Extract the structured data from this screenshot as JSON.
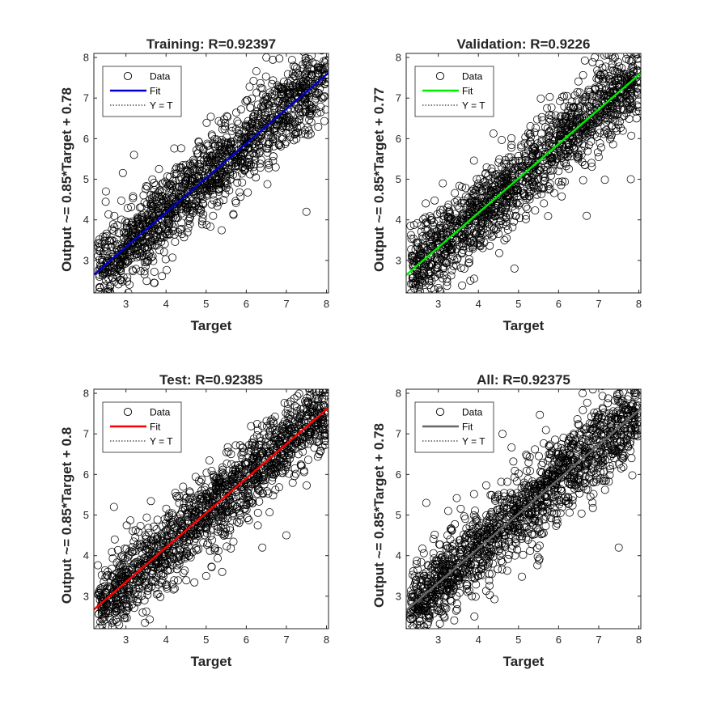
{
  "chart_data": [
    {
      "type": "scatter",
      "title": "Training: R=0.92397",
      "xlabel": "Target",
      "ylabel": "Output ~= 0.85*Target + 0.78",
      "xlim": [
        2.2,
        8.05
      ],
      "ylim": [
        2.2,
        8.1
      ],
      "xticks": [
        "3",
        "4",
        "5",
        "6",
        "7",
        "8"
      ],
      "yticks": [
        "3",
        "4",
        "5",
        "6",
        "7",
        "8"
      ],
      "fit": {
        "slope": 0.85,
        "intercept": 0.78,
        "color": "#0000cc"
      },
      "legend": {
        "position": "top-left",
        "entries": [
          "Data",
          "Fit",
          "Y = T"
        ]
      },
      "scatter": {
        "x_range": [
          2.3,
          8.0
        ],
        "spread": 0.55,
        "marker": "open-circle",
        "color": "#000000"
      },
      "outliers": [
        [
          3.7,
          2.45
        ],
        [
          7.5,
          4.2
        ],
        [
          6.5,
          8.0
        ],
        [
          2.5,
          4.7
        ],
        [
          3.2,
          5.6
        ]
      ]
    },
    {
      "type": "scatter",
      "title": "Validation: R=0.9226",
      "xlabel": "Target",
      "ylabel": "Output ~= 0.85*Target + 0.77",
      "xlim": [
        2.2,
        8.05
      ],
      "ylim": [
        2.2,
        8.1
      ],
      "xticks": [
        "3",
        "4",
        "5",
        "6",
        "7",
        "8"
      ],
      "yticks": [
        "3",
        "4",
        "5",
        "6",
        "7",
        "8"
      ],
      "fit": {
        "slope": 0.85,
        "intercept": 0.77,
        "color": "#00ee00"
      },
      "legend": {
        "position": "top-left",
        "entries": [
          "Data",
          "Fit",
          "Y = T"
        ]
      },
      "scatter": {
        "x_range": [
          2.3,
          8.0
        ],
        "spread": 0.55,
        "marker": "open-circle",
        "color": "#000000"
      },
      "outliers": [
        [
          4.9,
          2.8
        ],
        [
          3.8,
          2.5
        ],
        [
          6.7,
          4.1
        ],
        [
          7.8,
          5.0
        ],
        [
          6.9,
          8.0
        ]
      ]
    },
    {
      "type": "scatter",
      "title": "Test: R=0.92385",
      "xlabel": "Target",
      "ylabel": "Output ~= 0.85*Target + 0.8",
      "xlim": [
        2.2,
        8.05
      ],
      "ylim": [
        2.2,
        8.1
      ],
      "xticks": [
        "3",
        "4",
        "5",
        "6",
        "7",
        "8"
      ],
      "yticks": [
        "3",
        "4",
        "5",
        "6",
        "7",
        "8"
      ],
      "fit": {
        "slope": 0.85,
        "intercept": 0.8,
        "color": "#ff0000"
      },
      "legend": {
        "position": "top-left",
        "entries": [
          "Data",
          "Fit",
          "Y = T"
        ]
      },
      "scatter": {
        "x_range": [
          2.3,
          8.0
        ],
        "spread": 0.55,
        "marker": "open-circle",
        "color": "#000000"
      },
      "outliers": [
        [
          2.7,
          5.2
        ],
        [
          5.0,
          3.5
        ],
        [
          6.4,
          4.2
        ],
        [
          7.0,
          4.5
        ],
        [
          5.4,
          3.6
        ]
      ]
    },
    {
      "type": "scatter",
      "title": "All: R=0.92375",
      "xlabel": "Target",
      "ylabel": "Output ~= 0.85*Target + 0.78",
      "xlim": [
        2.2,
        8.05
      ],
      "ylim": [
        2.2,
        8.1
      ],
      "xticks": [
        "3",
        "4",
        "5",
        "6",
        "7",
        "8"
      ],
      "yticks": [
        "3",
        "4",
        "5",
        "6",
        "7",
        "8"
      ],
      "fit": {
        "slope": 0.85,
        "intercept": 0.78,
        "color": "#666666"
      },
      "legend": {
        "position": "top-left",
        "entries": [
          "Data",
          "Fit",
          "Y = T"
        ]
      },
      "scatter": {
        "x_range": [
          2.3,
          8.0
        ],
        "spread": 0.55,
        "marker": "open-circle",
        "color": "#000000"
      },
      "outliers": [
        [
          7.5,
          4.2
        ],
        [
          3.9,
          2.5
        ],
        [
          2.7,
          5.3
        ],
        [
          6.6,
          8.0
        ],
        [
          4.6,
          7.0
        ]
      ]
    }
  ]
}
